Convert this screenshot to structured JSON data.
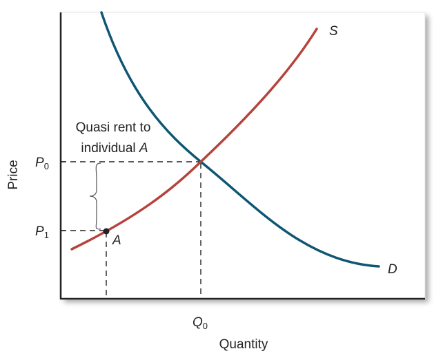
{
  "y_axis_label": "Price",
  "x_axis_label": "Quantity",
  "price_labels": {
    "p0": {
      "main": "P",
      "sub": "0"
    },
    "p1": {
      "main": "P",
      "sub": "1"
    }
  },
  "quantity_label": {
    "main": "Q",
    "sub": "0"
  },
  "curves": {
    "supply": {
      "label": "S",
      "color": "#b5433a"
    },
    "demand": {
      "label": "D",
      "color": "#0e5672"
    }
  },
  "point_label": "A",
  "annotation": {
    "line1": "Quasi rent to",
    "line2_prefix": "individual ",
    "line2_name": "A"
  },
  "colors": {
    "axis": "#222222",
    "dashes": "#222222"
  }
}
